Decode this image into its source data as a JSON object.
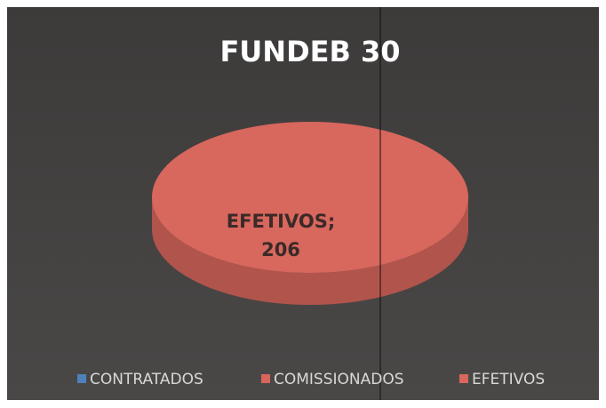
{
  "chart_data": {
    "type": "pie",
    "title": "FUNDEB 30",
    "categories": [
      "CONTRATADOS",
      "COMISSIONADOS",
      "EFETIVOS"
    ],
    "values": [
      0,
      0,
      206
    ],
    "value_labels": [
      null,
      null,
      "EFETIVOS; 206"
    ],
    "colors": [
      "#4f81bd",
      "#d8645a",
      "#d8675d"
    ],
    "legend": "bottom"
  }
}
